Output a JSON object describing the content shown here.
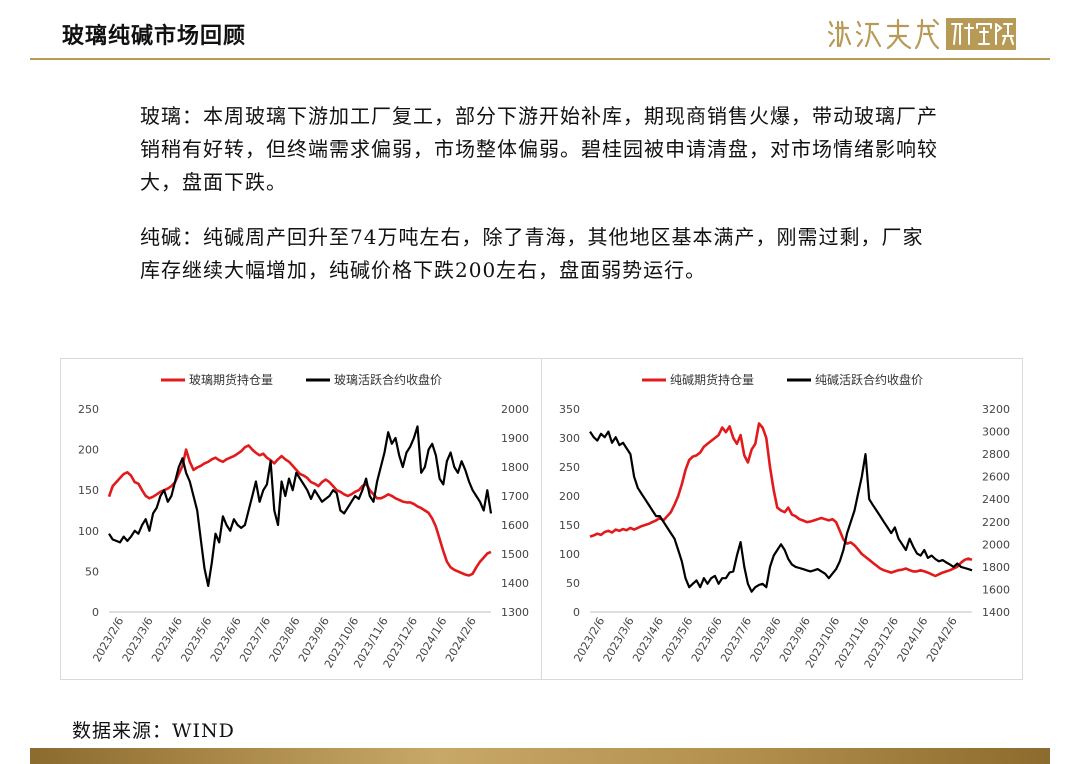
{
  "header": {
    "title": "玻璃纯碱市场回顾",
    "logo_text": "源达天成研究院"
  },
  "colors": {
    "gold": "#b89a57",
    "red_series": "#e31a1c",
    "black_series": "#000000"
  },
  "body": {
    "paragraph_glass": "玻璃：本周玻璃下游加工厂复工，部分下游开始补库，期现商销售火爆，带动玻璃厂产销稍有好转，但终端需求偏弱，市场整体偏弱。碧桂园被申请清盘，对市场情绪影响较大，盘面下跌。",
    "paragraph_soda": "纯碱：纯碱周产回升至74万吨左右，除了青海，其他地区基本满产，刚需过剩，厂家库存继续大幅增加，纯碱价格下跌200左右，盘面弱势运行。"
  },
  "source": "数据来源：WIND",
  "chart_data": [
    {
      "type": "line",
      "x_labels": [
        "2023/2/6",
        "2023/3/6",
        "2023/4/6",
        "2023/5/6",
        "2023/6/6",
        "2023/7/6",
        "2023/8/6",
        "2023/9/6",
        "2023/10/6",
        "2023/11/6",
        "2023/12/6",
        "2024/1/6",
        "2024/2/6"
      ],
      "y_left": {
        "min": 0,
        "max": 250,
        "ticks": [
          0,
          50,
          100,
          150,
          200,
          250
        ]
      },
      "y_right": {
        "min": 1300,
        "max": 2000,
        "ticks": [
          1300,
          1400,
          1500,
          1600,
          1700,
          1800,
          1900,
          2000
        ]
      },
      "series": [
        {
          "name": "玻璃期货持仓量",
          "axis": "left",
          "color": "#e31a1c",
          "values": [
            142,
            155,
            160,
            165,
            170,
            172,
            168,
            160,
            158,
            150,
            143,
            140,
            142,
            145,
            148,
            150,
            152,
            155,
            160,
            170,
            180,
            200,
            185,
            175,
            178,
            180,
            183,
            185,
            188,
            190,
            187,
            185,
            188,
            190,
            192,
            195,
            198,
            203,
            205,
            200,
            196,
            193,
            195,
            190,
            187,
            183,
            188,
            192,
            188,
            185,
            180,
            175,
            170,
            168,
            165,
            160,
            158,
            155,
            160,
            163,
            160,
            155,
            150,
            148,
            145,
            143,
            145,
            148,
            150,
            155,
            158,
            150,
            145,
            140,
            140,
            142,
            145,
            143,
            140,
            138,
            136,
            135,
            135,
            133,
            130,
            128,
            125,
            122,
            115,
            105,
            90,
            75,
            62,
            55,
            52,
            50,
            48,
            46,
            45,
            47,
            55,
            62,
            67,
            72,
            74
          ]
        },
        {
          "name": "玻璃活跃合约收盘价",
          "axis": "right",
          "color": "#000000",
          "values": [
            1570,
            1550,
            1545,
            1540,
            1560,
            1545,
            1560,
            1580,
            1570,
            1600,
            1620,
            1580,
            1640,
            1660,
            1700,
            1720,
            1680,
            1700,
            1750,
            1800,
            1830,
            1780,
            1750,
            1700,
            1650,
            1550,
            1450,
            1390,
            1470,
            1570,
            1540,
            1630,
            1600,
            1580,
            1620,
            1600,
            1590,
            1600,
            1650,
            1700,
            1750,
            1680,
            1720,
            1740,
            1820,
            1650,
            1600,
            1750,
            1700,
            1760,
            1720,
            1780,
            1760,
            1740,
            1720,
            1690,
            1720,
            1700,
            1680,
            1690,
            1700,
            1720,
            1710,
            1650,
            1640,
            1660,
            1680,
            1700,
            1690,
            1720,
            1760,
            1700,
            1680,
            1750,
            1800,
            1850,
            1920,
            1880,
            1900,
            1840,
            1800,
            1850,
            1870,
            1900,
            1940,
            1780,
            1800,
            1860,
            1880,
            1840,
            1760,
            1740,
            1820,
            1850,
            1800,
            1780,
            1820,
            1790,
            1750,
            1720,
            1700,
            1680,
            1650,
            1720,
            1640
          ]
        }
      ]
    },
    {
      "type": "line",
      "x_labels": [
        "2023/2/6",
        "2023/3/6",
        "2023/4/6",
        "2023/5/6",
        "2023/6/6",
        "2023/7/6",
        "2023/8/6",
        "2023/9/6",
        "2023/10/6",
        "2023/11/6",
        "2023/12/6",
        "2024/1/6",
        "2024/2/6"
      ],
      "y_left": {
        "min": 0,
        "max": 350,
        "ticks": [
          0,
          50,
          100,
          150,
          200,
          250,
          300,
          350
        ]
      },
      "y_right": {
        "min": 1400,
        "max": 3200,
        "ticks": [
          1400,
          1600,
          1800,
          2000,
          2200,
          2400,
          2600,
          2800,
          3000,
          3200
        ]
      },
      "series": [
        {
          "name": "纯碱期货持仓量",
          "axis": "left",
          "color": "#e31a1c",
          "values": [
            130,
            132,
            135,
            133,
            138,
            140,
            137,
            142,
            140,
            143,
            141,
            145,
            142,
            145,
            148,
            150,
            152,
            155,
            158,
            162,
            158,
            165,
            172,
            185,
            200,
            220,
            245,
            262,
            268,
            270,
            275,
            285,
            290,
            295,
            300,
            305,
            318,
            310,
            320,
            300,
            290,
            305,
            270,
            258,
            280,
            290,
            325,
            318,
            300,
            250,
            210,
            180,
            175,
            172,
            180,
            168,
            165,
            160,
            158,
            155,
            156,
            158,
            160,
            162,
            160,
            158,
            160,
            155,
            140,
            125,
            118,
            120,
            115,
            108,
            100,
            95,
            90,
            85,
            80,
            75,
            72,
            70,
            68,
            70,
            72,
            73,
            75,
            72,
            70,
            70,
            72,
            70,
            68,
            65,
            62,
            65,
            68,
            70,
            72,
            75,
            78,
            85,
            90,
            92,
            90
          ]
        },
        {
          "name": "纯碱活跃合约收盘价",
          "axis": "right",
          "color": "#000000",
          "values": [
            3000,
            2950,
            2920,
            2980,
            2950,
            3000,
            2900,
            2950,
            2880,
            2900,
            2850,
            2800,
            2600,
            2500,
            2450,
            2400,
            2350,
            2300,
            2250,
            2250,
            2200,
            2150,
            2100,
            2050,
            1950,
            1850,
            1700,
            1620,
            1650,
            1680,
            1620,
            1700,
            1650,
            1700,
            1720,
            1650,
            1700,
            1700,
            1750,
            1760,
            1900,
            2020,
            1800,
            1650,
            1580,
            1620,
            1640,
            1650,
            1620,
            1800,
            1900,
            1950,
            2000,
            1950,
            1870,
            1820,
            1800,
            1790,
            1780,
            1770,
            1760,
            1770,
            1780,
            1760,
            1740,
            1700,
            1740,
            1780,
            1850,
            1950,
            2100,
            2200,
            2300,
            2450,
            2600,
            2800,
            2400,
            2350,
            2300,
            2250,
            2200,
            2150,
            2100,
            2150,
            2050,
            2000,
            1950,
            2050,
            1980,
            1920,
            1900,
            1950,
            1880,
            1900,
            1870,
            1850,
            1860,
            1840,
            1820,
            1800,
            1830,
            1800,
            1790,
            1780,
            1770
          ]
        }
      ]
    }
  ]
}
